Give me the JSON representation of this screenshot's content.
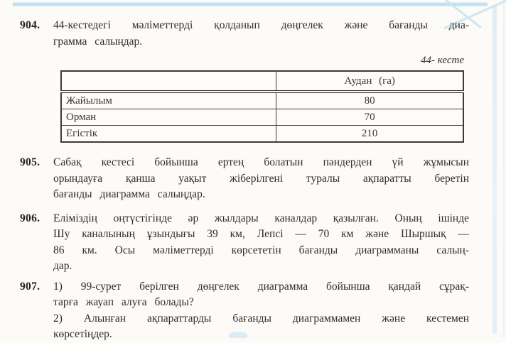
{
  "document": {
    "kind": "textbook-page",
    "language": "Kazakh"
  },
  "problems": [
    {
      "number": "904.",
      "paragraphs": [
        [
          "44-кестедегі мәліметтерді қолданып дөңгелек және бағанды диа-",
          "грамма салыңдар."
        ]
      ]
    },
    {
      "number": "905.",
      "paragraphs": [
        [
          "Сабақ кестесі бойынша ертең болатын пәндерден үй жұмысын",
          "орындауға қанша уақыт жіберілгені туралы ақпаратты беретін",
          "бағанды диаграмма салыңдар."
        ]
      ]
    },
    {
      "number": "906.",
      "paragraphs": [
        [
          "Еліміздің оңтүстігінде әр жылдары каналдар қазылған. Оның ішінде",
          "Шу каналының ұзындығы 39 км, Лепсі — 70 км және Шыршық —",
          "86 км. Осы мәліметтерді көрсететін бағанды диаграмманы салың-",
          "дар."
        ]
      ]
    },
    {
      "number": "907.",
      "paragraphs": [
        [
          "1) 99-сурет берілген дөңгелек диаграмма бойынша қандай сұрақ-",
          "тарға жауап алуға болады?"
        ],
        [
          "2) Алынған ақпараттарды бағанды диаграммамен және кестемен",
          "көрсетіңдер."
        ]
      ]
    }
  ],
  "table": {
    "caption": "44- кесте",
    "columns": [
      "",
      "Аудан (га)"
    ],
    "rows": [
      {
        "label": "Жайылым",
        "value": "80"
      },
      {
        "label": "Орман",
        "value": "70"
      },
      {
        "label": "Егістік",
        "value": "210"
      }
    ]
  },
  "colors": {
    "accent_line": "#b7dbed",
    "page_background": "#fcfbf8",
    "text": "#2e2d2b",
    "table_border": "#3c3b39"
  }
}
